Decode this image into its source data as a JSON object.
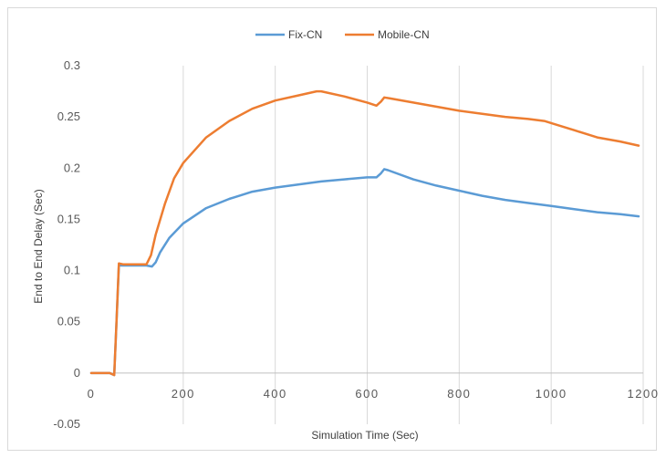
{
  "chart_data": {
    "type": "line",
    "xlabel": "Simulation Time (Sec)",
    "ylabel": "End to End Delay (Sec)",
    "xlim": [
      0,
      1200
    ],
    "ylim": [
      -0.05,
      0.3
    ],
    "x_ticks": [
      "0",
      "200",
      "400",
      "600",
      "800",
      "1000",
      "1200"
    ],
    "y_ticks": [
      "-0.05",
      "0",
      "0.05",
      "0.1",
      "0.15",
      "0.2",
      "0.25",
      "0.3"
    ],
    "grid": "vertical",
    "legend": "top-center",
    "series": [
      {
        "name": "Fix-CN",
        "color": "#5b9bd5",
        "points": [
          [
            0,
            0
          ],
          [
            40,
            0
          ],
          [
            50,
            -0.002
          ],
          [
            55,
            0.05
          ],
          [
            60,
            0.105
          ],
          [
            70,
            0.105
          ],
          [
            90,
            0.105
          ],
          [
            120,
            0.105
          ],
          [
            132,
            0.104
          ],
          [
            140,
            0.108
          ],
          [
            150,
            0.118
          ],
          [
            170,
            0.132
          ],
          [
            200,
            0.146
          ],
          [
            250,
            0.161
          ],
          [
            300,
            0.17
          ],
          [
            350,
            0.177
          ],
          [
            400,
            0.181
          ],
          [
            450,
            0.184
          ],
          [
            500,
            0.187
          ],
          [
            550,
            0.189
          ],
          [
            600,
            0.191
          ],
          [
            620,
            0.191
          ],
          [
            630,
            0.195
          ],
          [
            637,
            0.199
          ],
          [
            645,
            0.198
          ],
          [
            700,
            0.189
          ],
          [
            750,
            0.183
          ],
          [
            800,
            0.178
          ],
          [
            850,
            0.173
          ],
          [
            900,
            0.169
          ],
          [
            950,
            0.166
          ],
          [
            1000,
            0.163
          ],
          [
            1050,
            0.16
          ],
          [
            1100,
            0.157
          ],
          [
            1150,
            0.155
          ],
          [
            1190,
            0.153
          ]
        ]
      },
      {
        "name": "Mobile-CN",
        "color": "#ed7d31",
        "points": [
          [
            0,
            0
          ],
          [
            40,
            0
          ],
          [
            50,
            -0.002
          ],
          [
            55,
            0.05
          ],
          [
            60,
            0.107
          ],
          [
            70,
            0.106
          ],
          [
            90,
            0.106
          ],
          [
            120,
            0.106
          ],
          [
            130,
            0.115
          ],
          [
            140,
            0.135
          ],
          [
            160,
            0.165
          ],
          [
            180,
            0.19
          ],
          [
            200,
            0.205
          ],
          [
            250,
            0.23
          ],
          [
            300,
            0.246
          ],
          [
            350,
            0.258
          ],
          [
            400,
            0.266
          ],
          [
            450,
            0.271
          ],
          [
            490,
            0.275
          ],
          [
            500,
            0.275
          ],
          [
            550,
            0.27
          ],
          [
            600,
            0.264
          ],
          [
            620,
            0.261
          ],
          [
            630,
            0.265
          ],
          [
            637,
            0.269
          ],
          [
            650,
            0.268
          ],
          [
            700,
            0.264
          ],
          [
            750,
            0.26
          ],
          [
            800,
            0.256
          ],
          [
            850,
            0.253
          ],
          [
            900,
            0.25
          ],
          [
            950,
            0.248
          ],
          [
            985,
            0.246
          ],
          [
            1000,
            0.244
          ],
          [
            1050,
            0.237
          ],
          [
            1100,
            0.23
          ],
          [
            1150,
            0.226
          ],
          [
            1190,
            0.222
          ]
        ]
      }
    ]
  }
}
